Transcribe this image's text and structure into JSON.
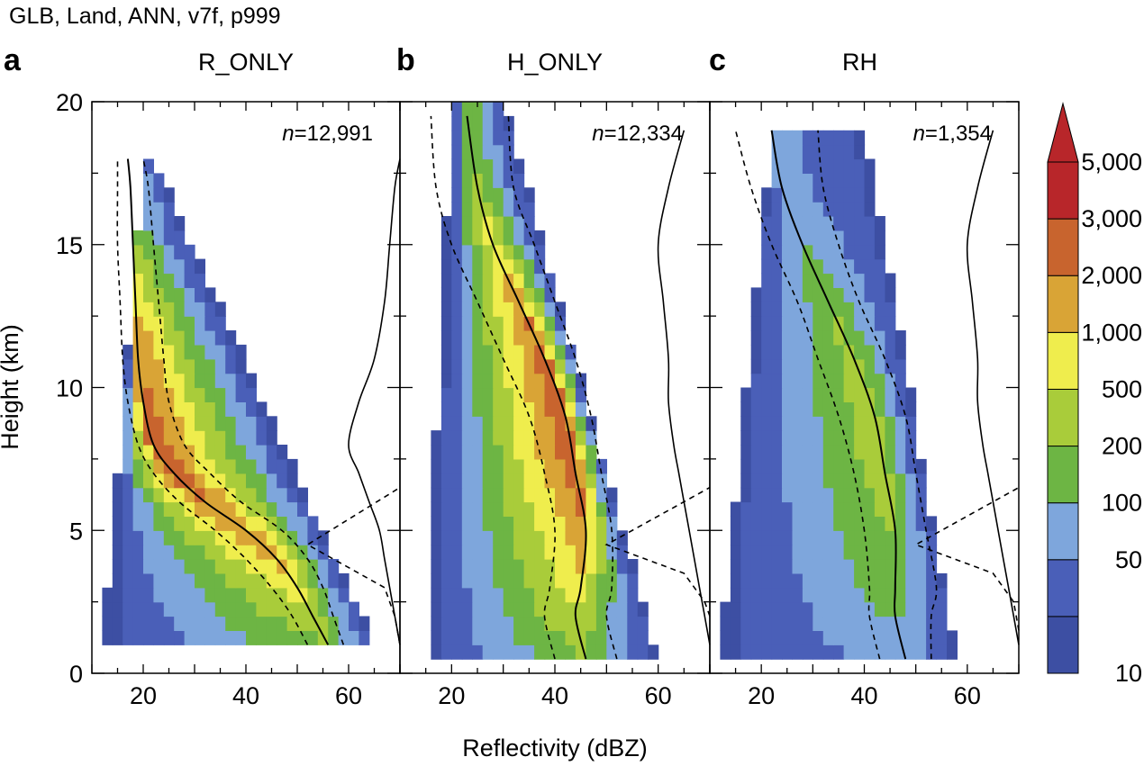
{
  "header": "GLB, Land, ANN, v7f, p999",
  "chart_data": {
    "type": "heatmap",
    "description_units": {
      "x": "dBZ",
      "y": "km"
    },
    "xlabel": "Reflectivity (dBZ)",
    "ylabel": "Height (km)",
    "xlim": [
      10,
      70
    ],
    "ylim": [
      0,
      20
    ],
    "xticks": [
      20,
      40,
      60
    ],
    "yticks": [
      0,
      5,
      10,
      15,
      20
    ],
    "x_tick_labels": [
      "20",
      "40",
      "60"
    ],
    "y_tick_labels": [
      "0",
      "5",
      "10",
      "15",
      "20"
    ],
    "colorbar": {
      "labels": [
        "10",
        "50",
        "100",
        "200",
        "500",
        "1,000",
        "2,000",
        "3,000",
        "5,000"
      ],
      "colors": [
        "#3d4fa3",
        "#4a5fb8",
        "#7ea6dc",
        "#6db544",
        "#a9cc3a",
        "#efed4d",
        "#d9a436",
        "#c8642e",
        "#b8262a"
      ]
    },
    "panels": [
      {
        "letter": "a",
        "title": "R_ONLY",
        "n": "n=12,991",
        "n_italic": "n",
        "n_value": "=12,991",
        "top_height_km": 17.6,
        "median": [
          [
            56,
            1
          ],
          [
            53,
            2
          ],
          [
            50,
            3
          ],
          [
            46,
            4
          ],
          [
            40,
            5
          ],
          [
            32,
            6
          ],
          [
            26,
            7
          ],
          [
            22,
            8
          ],
          [
            20,
            9.5
          ],
          [
            19,
            11
          ],
          [
            18.5,
            13
          ],
          [
            18,
            15
          ],
          [
            17.5,
            17
          ],
          [
            17,
            18
          ]
        ],
        "p25": [
          [
            52,
            1
          ],
          [
            49,
            2
          ],
          [
            45,
            3
          ],
          [
            40,
            4
          ],
          [
            34,
            5
          ],
          [
            27,
            6
          ],
          [
            22,
            7
          ],
          [
            19,
            8
          ],
          [
            17,
            9.5
          ],
          [
            16,
            11
          ],
          [
            15.5,
            13
          ],
          [
            15,
            15
          ],
          [
            15,
            17
          ],
          [
            15,
            18
          ]
        ],
        "p75": [
          [
            59,
            1
          ],
          [
            57,
            2
          ],
          [
            55,
            3
          ],
          [
            52,
            4
          ],
          [
            47,
            5
          ],
          [
            39,
            6
          ],
          [
            33,
            7
          ],
          [
            28,
            8
          ],
          [
            25,
            9.5
          ],
          [
            24,
            11
          ],
          [
            23,
            13
          ],
          [
            22,
            15
          ],
          [
            21,
            17
          ],
          [
            20,
            18
          ]
        ],
        "profile_solid": [
          [
            70,
            1
          ],
          [
            69,
            2
          ],
          [
            68,
            3
          ],
          [
            67,
            4
          ],
          [
            66,
            5
          ],
          [
            64,
            6
          ],
          [
            62,
            7
          ],
          [
            60,
            8
          ],
          [
            62,
            9.5
          ],
          [
            65,
            11
          ],
          [
            67,
            13
          ],
          [
            68,
            15
          ],
          [
            69,
            17
          ],
          [
            70,
            18
          ]
        ],
        "profile_dashed": [
          [
            70,
            1
          ],
          [
            69,
            2
          ],
          [
            67,
            3
          ],
          [
            62,
            3.5
          ],
          [
            52,
            4.5
          ],
          [
            70,
            6.5
          ]
        ],
        "wiggle": [],
        "shape": {
          "y0": 1,
          "y1": 17.6,
          "a0": 23,
          "a1": 65,
          "b0": 12,
          "b1": 20,
          "ta": 4,
          "tb": 4,
          "kr": 1.0,
          "skew": 0
        }
      },
      {
        "letter": "b",
        "title": "H_ONLY",
        "n": "n=12,334",
        "n_italic": "n",
        "n_value": "=12,334",
        "top_height_km": 20,
        "median": [
          [
            46,
            0.5
          ],
          [
            44,
            2
          ],
          [
            45,
            3
          ],
          [
            46,
            5
          ],
          [
            44,
            7
          ],
          [
            42,
            9
          ],
          [
            38,
            11
          ],
          [
            33,
            13
          ],
          [
            28,
            15
          ],
          [
            25,
            17
          ],
          [
            23,
            19.5
          ]
        ],
        "p25": [
          [
            40,
            0.5
          ],
          [
            38,
            2
          ],
          [
            39,
            3
          ],
          [
            40,
            5
          ],
          [
            38,
            7
          ],
          [
            35,
            9
          ],
          [
            30,
            11
          ],
          [
            25,
            13
          ],
          [
            20,
            15
          ],
          [
            17,
            17
          ],
          [
            16,
            19.5
          ]
        ],
        "p75": [
          [
            52,
            0.5
          ],
          [
            50,
            2
          ],
          [
            51,
            3
          ],
          [
            51,
            5
          ],
          [
            49,
            7
          ],
          [
            47,
            9
          ],
          [
            44,
            11
          ],
          [
            40,
            13
          ],
          [
            36,
            15
          ],
          [
            32,
            17
          ],
          [
            31,
            19.5
          ]
        ],
        "profile_solid": [
          [
            70,
            1
          ],
          [
            69,
            2
          ],
          [
            68,
            3
          ],
          [
            67,
            4
          ],
          [
            66,
            5
          ],
          [
            65,
            6
          ],
          [
            64,
            7
          ],
          [
            63,
            8
          ],
          [
            62,
            9.5
          ],
          [
            62,
            11
          ],
          [
            61,
            13
          ],
          [
            60,
            15
          ],
          [
            62,
            17
          ],
          [
            65,
            19
          ]
        ],
        "profile_dashed": [
          [
            70,
            2
          ],
          [
            69,
            2.5
          ],
          [
            65,
            3.5
          ],
          [
            50,
            4.5
          ],
          [
            70,
            6.5
          ]
        ],
        "wiggle": [],
        "shape": {
          "y0": 0.5,
          "y1": 20,
          "a0": 30,
          "a1": 60,
          "b0": 15,
          "b1": 20,
          "ta": 1,
          "tb": 1,
          "kr": 1.0,
          "skew": 0
        }
      },
      {
        "letter": "c",
        "title": "RH",
        "n": "n=1,354",
        "n_italic": "n",
        "n_value": "=1,354",
        "top_height_km": 19,
        "median": [
          [
            48,
            0.5
          ],
          [
            46,
            2
          ],
          [
            46,
            3
          ],
          [
            46,
            5
          ],
          [
            44,
            7
          ],
          [
            42,
            9
          ],
          [
            38,
            11
          ],
          [
            33,
            13
          ],
          [
            28,
            15
          ],
          [
            24,
            17
          ],
          [
            22,
            19
          ]
        ],
        "p25": [
          [
            43,
            0.5
          ],
          [
            41,
            2
          ],
          [
            41,
            3
          ],
          [
            40,
            5
          ],
          [
            38,
            7
          ],
          [
            35,
            9
          ],
          [
            31,
            11
          ],
          [
            27,
            13
          ],
          [
            22,
            15
          ],
          [
            18,
            17
          ],
          [
            15,
            19
          ]
        ],
        "p75": [
          [
            53,
            0.5
          ],
          [
            53,
            2
          ],
          [
            54,
            3
          ],
          [
            52,
            5
          ],
          [
            50,
            7
          ],
          [
            48,
            9
          ],
          [
            44,
            11
          ],
          [
            39,
            13
          ],
          [
            35,
            15
          ],
          [
            32,
            17
          ],
          [
            31,
            19
          ]
        ],
        "profile_solid": [
          [
            70,
            1
          ],
          [
            69,
            2
          ],
          [
            68,
            3
          ],
          [
            67,
            4
          ],
          [
            66,
            5
          ],
          [
            65,
            6
          ],
          [
            64,
            7
          ],
          [
            63,
            8
          ],
          [
            62,
            9.5
          ],
          [
            62,
            11
          ],
          [
            61,
            13
          ],
          [
            60,
            15
          ],
          [
            62,
            17
          ],
          [
            65,
            19
          ]
        ],
        "profile_dashed": [
          [
            70,
            1.5
          ],
          [
            69,
            2.5
          ],
          [
            65,
            3.5
          ],
          [
            50,
            4.5
          ],
          [
            70,
            6.5
          ]
        ],
        "wiggle": [],
        "shape": {
          "y0": 0.5,
          "y1": 19,
          "a0": 40,
          "a1": 58,
          "b0": 12,
          "b1": 22,
          "ta": 1,
          "tb": 1,
          "kr": 0.55,
          "skew": 0
        }
      }
    ]
  }
}
